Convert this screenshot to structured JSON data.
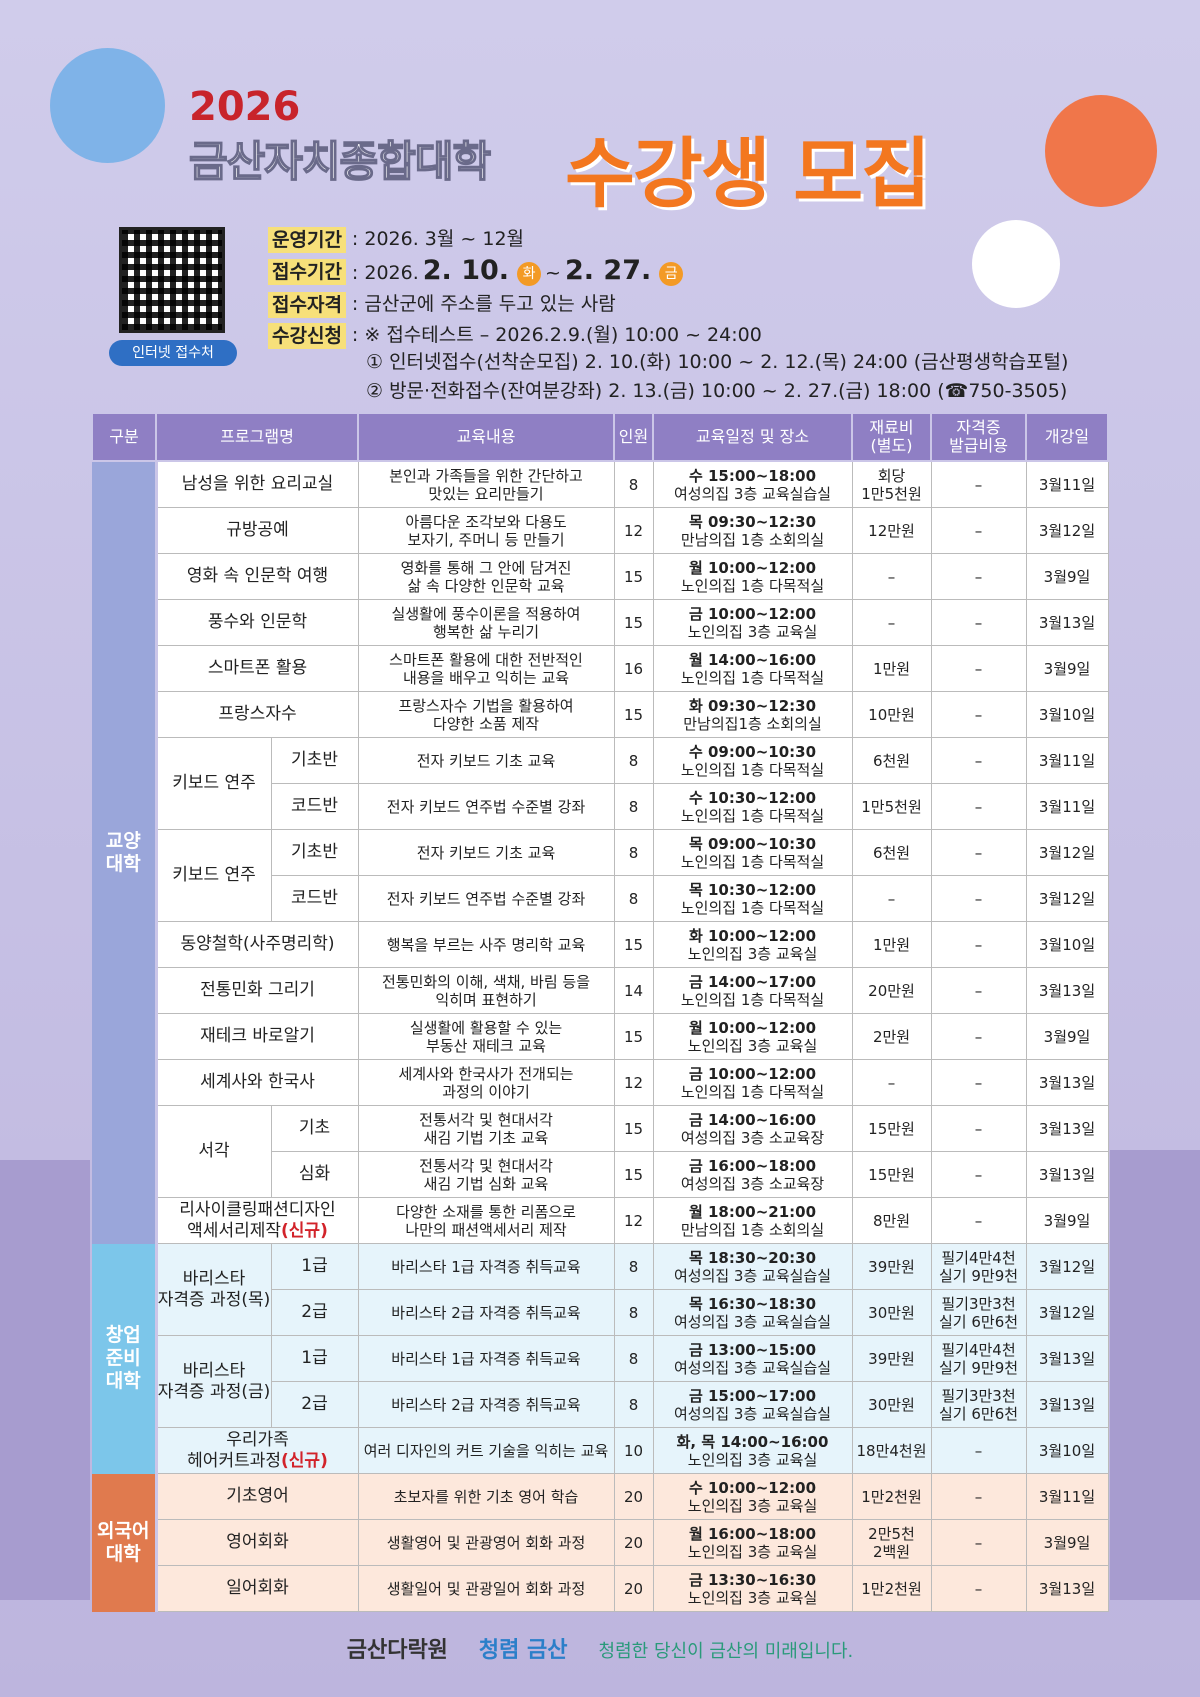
{
  "header": {
    "year": "2026",
    "title": "금산자치종합대학",
    "headline": "수강생 모집",
    "qr_label": "인터넷 접수처"
  },
  "info": {
    "period": {
      "label": "운영기간",
      "value": ": 2026. 3월 ~ 12월"
    },
    "application": {
      "label": "접수기간",
      "prefix": ": 2026.",
      "start": "2. 10.",
      "start_day": "화",
      "separator": "~",
      "end": "2. 27.",
      "end_day": "금"
    },
    "eligibility": {
      "label": "접수자격",
      "value": ": 금산군에 주소를 두고 있는 사람"
    },
    "registration": {
      "label": "수강신청",
      "lines": [
        ": ※ 접수테스트 – 2026.2.9.(월) 10:00 ~ 24:00",
        "① 인터넷접수(선착순모집) 2. 10.(화) 10:00 ~ 2. 12.(목) 24:00 (금산평생학습포털)",
        "② 방문·전화접수(잔여분강좌) 2. 13.(금) 10:00 ~ 2. 27.(금) 18:00 (☎750-3505)"
      ]
    }
  },
  "table": {
    "headers": [
      "구분",
      "프로그램명",
      "교육내용",
      "인원",
      "교육일정 및 장소",
      "재료비\n(별도)",
      "자격증\n발급비용",
      "개강일"
    ],
    "sections": [
      {
        "name": "교양\n대학",
        "programs": [
          {
            "name": "남성을 위한 요리교실",
            "courses": [
              {
                "content": "본인과 가족들을 위한 간단하고\n맛있는 요리만들기",
                "capacity": 8,
                "schedule": "수 15:00~18:00",
                "place": "여성의집 3층 교육실습실",
                "fee": "회당\n1만5천원",
                "cert": "–",
                "start": "3월11일"
              }
            ]
          },
          {
            "name": "규방공예",
            "courses": [
              {
                "content": "아름다운 조각보와 다용도\n보자기, 주머니 등 만들기",
                "capacity": 12,
                "schedule": "목 09:30~12:30",
                "place": "만남의집 1층 소회의실",
                "fee": "12만원",
                "cert": "–",
                "start": "3월12일"
              }
            ]
          },
          {
            "name": "영화 속 인문학 여행",
            "courses": [
              {
                "content": "영화를 통해 그 안에 담겨진\n삶 속 다양한 인문학 교육",
                "capacity": 15,
                "schedule": "월 10:00~12:00",
                "place": "노인의집 1층 다목적실",
                "fee": "–",
                "cert": "–",
                "start": "3월9일"
              }
            ]
          },
          {
            "name": "풍수와 인문학",
            "courses": [
              {
                "content": "실생활에 풍수이론을 적용하여\n행복한 삶 누리기",
                "capacity": 15,
                "schedule": "금 10:00~12:00",
                "place": "노인의집 3층 교육실",
                "fee": "–",
                "cert": "–",
                "start": "3월13일"
              }
            ]
          },
          {
            "name": "스마트폰 활용",
            "courses": [
              {
                "content": "스마트폰 활용에 대한 전반적인\n내용을 배우고 익히는 교육",
                "capacity": 16,
                "schedule": "월 14:00~16:00",
                "place": "노인의집 1층 다목적실",
                "fee": "1만원",
                "cert": "–",
                "start": "3월9일"
              }
            ]
          },
          {
            "name": "프랑스자수",
            "courses": [
              {
                "content": "프랑스자수 기법을 활용하여\n다양한 소품 제작",
                "capacity": 15,
                "schedule": "화 09:30~12:30",
                "place": "만남의집1층 소회의실",
                "fee": "10만원",
                "cert": "–",
                "start": "3월10일"
              }
            ]
          },
          {
            "name": "키보드 연주",
            "courses": [
              {
                "sub": "기초반",
                "content": "전자 키보드 기초 교육",
                "capacity": 8,
                "schedule": "수 09:00~10:30",
                "place": "노인의집 1층 다목적실",
                "fee": "6천원",
                "cert": "–",
                "start": "3월11일"
              },
              {
                "sub": "코드반",
                "content": "전자 키보드 연주법 수준별 강좌",
                "capacity": 8,
                "schedule": "수 10:30~12:00",
                "place": "노인의집 1층 다목적실",
                "fee": "1만5천원",
                "cert": "–",
                "start": "3월11일"
              }
            ]
          },
          {
            "name": "키보드 연주",
            "courses": [
              {
                "sub": "기초반",
                "content": "전자 키보드 기초 교육",
                "capacity": 8,
                "schedule": "목 09:00~10:30",
                "place": "노인의집 1층 다목적실",
                "fee": "6천원",
                "cert": "–",
                "start": "3월12일"
              },
              {
                "sub": "코드반",
                "content": "전자 키보드 연주법 수준별 강좌",
                "capacity": 8,
                "schedule": "목 10:30~12:00",
                "place": "노인의집 1층 다목적실",
                "fee": "–",
                "cert": "–",
                "start": "3월12일"
              }
            ]
          },
          {
            "name": "동양철학(사주명리학)",
            "courses": [
              {
                "content": "행복을 부르는 사주 명리학 교육",
                "capacity": 15,
                "schedule": "화 10:00~12:00",
                "place": "노인의집 3층 교육실",
                "fee": "1만원",
                "cert": "–",
                "start": "3월10일"
              }
            ]
          },
          {
            "name": "전통민화 그리기",
            "courses": [
              {
                "content": "전통민화의 이해, 색채, 바림 등을\n익히며 표현하기",
                "capacity": 14,
                "schedule": "금 14:00~17:00",
                "place": "노인의집 1층 다목적실",
                "fee": "20만원",
                "cert": "–",
                "start": "3월13일"
              }
            ]
          },
          {
            "name": "재테크 바로알기",
            "courses": [
              {
                "content": "실생활에 활용할 수 있는\n부동산 재테크 교육",
                "capacity": 15,
                "schedule": "월 10:00~12:00",
                "place": "노인의집 3층 교육실",
                "fee": "2만원",
                "cert": "–",
                "start": "3월9일"
              }
            ]
          },
          {
            "name": "세계사와 한국사",
            "courses": [
              {
                "content": "세계사와 한국사가 전개되는\n과정의 이야기",
                "capacity": 12,
                "schedule": "금 10:00~12:00",
                "place": "노인의집 1층 다목적실",
                "fee": "–",
                "cert": "–",
                "start": "3월13일"
              }
            ]
          },
          {
            "name": "서각",
            "courses": [
              {
                "sub": "기초",
                "content": "전통서각 및 현대서각\n새김 기법 기초 교육",
                "capacity": 15,
                "schedule": "금 14:00~16:00",
                "place": "여성의집 3층 소교육장",
                "fee": "15만원",
                "cert": "–",
                "start": "3월13일"
              },
              {
                "sub": "심화",
                "content": "전통서각 및 현대서각\n새김 기법 심화 교육",
                "capacity": 15,
                "schedule": "금 16:00~18:00",
                "place": "여성의집 3층 소교육장",
                "fee": "15만원",
                "cert": "–",
                "start": "3월13일"
              }
            ]
          },
          {
            "name": "리사이클링패션디자인\n액세서리제작",
            "tag": "(신규)",
            "courses": [
              {
                "content": "다양한 소재를 통한 리폼으로\n나만의 패션액세서리 제작",
                "capacity": 12,
                "schedule": "월 18:00~21:00",
                "place": "만남의집 1층 소회의실",
                "fee": "8만원",
                "cert": "–",
                "start": "3월9일"
              }
            ]
          }
        ]
      },
      {
        "name": "창업\n준비\n대학",
        "programs": [
          {
            "name": "바리스타\n자격증 과정(목)",
            "courses": [
              {
                "sub": "1급",
                "content": "바리스타 1급 자격증 취득교육",
                "capacity": 8,
                "schedule": "목 18:30~20:30",
                "place": "여성의집 3층 교육실습실",
                "fee": "39만원",
                "cert": "필기4만4천\n실기 9만9천",
                "start": "3월12일"
              },
              {
                "sub": "2급",
                "content": "바리스타 2급 자격증 취득교육",
                "capacity": 8,
                "schedule": "목 16:30~18:30",
                "place": "여성의집 3층 교육실습실",
                "fee": "30만원",
                "cert": "필기3만3천\n실기 6만6천",
                "start": "3월12일"
              }
            ]
          },
          {
            "name": "바리스타\n자격증 과정(금)",
            "courses": [
              {
                "sub": "1급",
                "content": "바리스타 1급 자격증 취득교육",
                "capacity": 8,
                "schedule": "금 13:00~15:00",
                "place": "여성의집 3층 교육실습실",
                "fee": "39만원",
                "cert": "필기4만4천\n실기 9만9천",
                "start": "3월13일"
              },
              {
                "sub": "2급",
                "content": "바리스타 2급 자격증 취득교육",
                "capacity": 8,
                "schedule": "금 15:00~17:00",
                "place": "여성의집 3층 교육실습실",
                "fee": "30만원",
                "cert": "필기3만3천\n실기 6만6천",
                "start": "3월13일"
              }
            ]
          },
          {
            "name": "우리가족\n헤어커트과정",
            "tag": "(신규)",
            "courses": [
              {
                "content": "여러 디자인의 커트 기술을 익히는 교육",
                "capacity": 10,
                "schedule": "화, 목 14:00~16:00",
                "place": "노인의집 3층 교육실",
                "fee": "18만4천원",
                "cert": "–",
                "start": "3월10일"
              }
            ]
          }
        ]
      },
      {
        "name": "외국어\n대학",
        "programs": [
          {
            "name": "기초영어",
            "courses": [
              {
                "content": "초보자를 위한 기초 영어 학습",
                "capacity": 20,
                "schedule": "수 10:00~12:00",
                "place": "노인의집 3층 교육실",
                "fee": "1만2천원",
                "cert": "–",
                "start": "3월11일"
              }
            ]
          },
          {
            "name": "영어회화",
            "courses": [
              {
                "content": "생활영어 및 관광영어 회화 과정",
                "capacity": 20,
                "schedule": "월 16:00~18:00",
                "place": "노인의집 3층 교육실",
                "fee": "2만5천\n2백원",
                "cert": "–",
                "start": "3월9일"
              }
            ]
          },
          {
            "name": "일어회화",
            "courses": [
              {
                "content": "생활일어 및 관광일어 회화 과정",
                "capacity": 20,
                "schedule": "금 13:30~16:30",
                "place": "노인의집 3층 교육실",
                "fee": "1만2천원",
                "cert": "–",
                "start": "3월13일"
              }
            ]
          }
        ]
      }
    ]
  },
  "footer": {
    "logo": "금산다락원",
    "campaign": "청렴 금산",
    "slogan": "청렴한 당신이 금산의 미래입니다."
  }
}
